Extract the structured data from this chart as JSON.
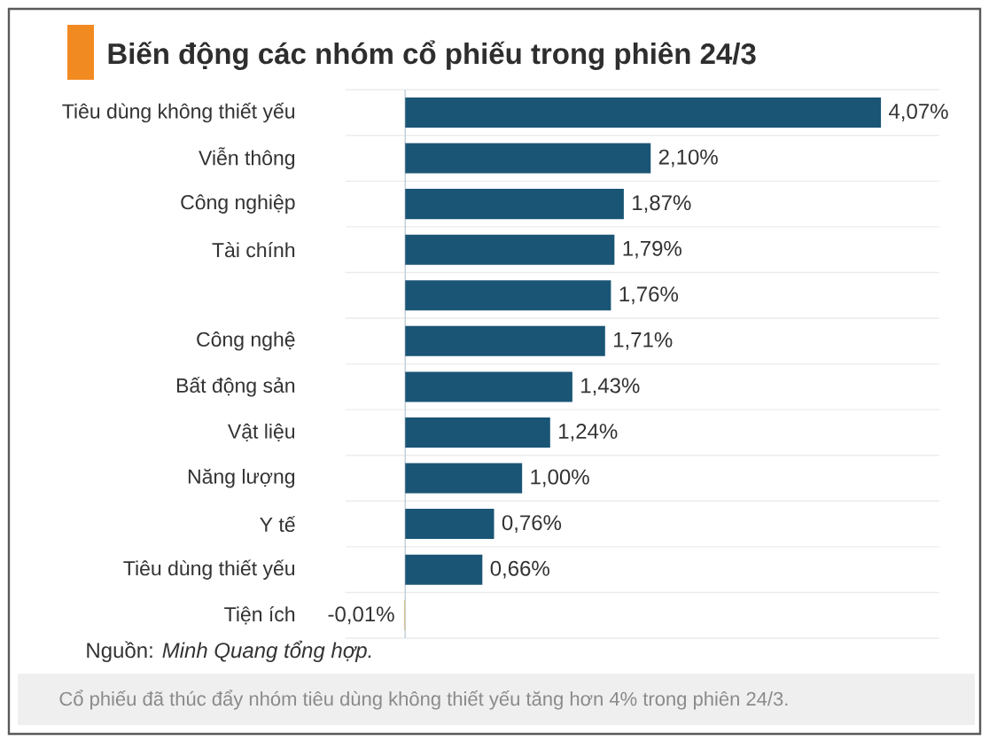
{
  "chart_data": {
    "type": "bar",
    "orientation": "horizontal",
    "title": "Biến động các nhóm cổ phiếu trong phiên 24/3",
    "categories": [
      "Tiêu dùng không thiết yếu",
      "Viễn thông",
      "Công nghiệp",
      "Tài chính",
      null,
      "Công nghệ",
      "Bất động sản",
      "Vật liệu",
      "Năng lượng",
      "Y tế",
      "Tiêu dùng thiết yếu",
      "Tiện ích"
    ],
    "values": [
      4.07,
      2.1,
      1.87,
      1.79,
      1.76,
      1.71,
      1.43,
      1.24,
      1.0,
      0.76,
      0.66,
      -0.01
    ],
    "colors": [
      "#1a5575",
      "#1a5575",
      "#1a5575",
      "#1a5575",
      "#1a5575",
      "#1a5575",
      "#1a5575",
      "#1a5575",
      "#1a5575",
      "#1a5575",
      "#1a5575",
      "#d9c39a"
    ],
    "value_labels": [
      "4,07%",
      "2,10%",
      "1,87%",
      "1,79%",
      "1,76%",
      "1,71%",
      "1,43%",
      "1,24%",
      "1,00%",
      "0,76%",
      "0,66%",
      "-0,01%"
    ],
    "grid": "y",
    "annotations": [
      "Nguồn: *Minh Quang tổng hợp.*",
      "Cổ phiếu đã thúc đẩy nhóm tiêu dùng không thiết yếu tăng hơn 4% trong phiên 24/3."
    ]
  }
}
